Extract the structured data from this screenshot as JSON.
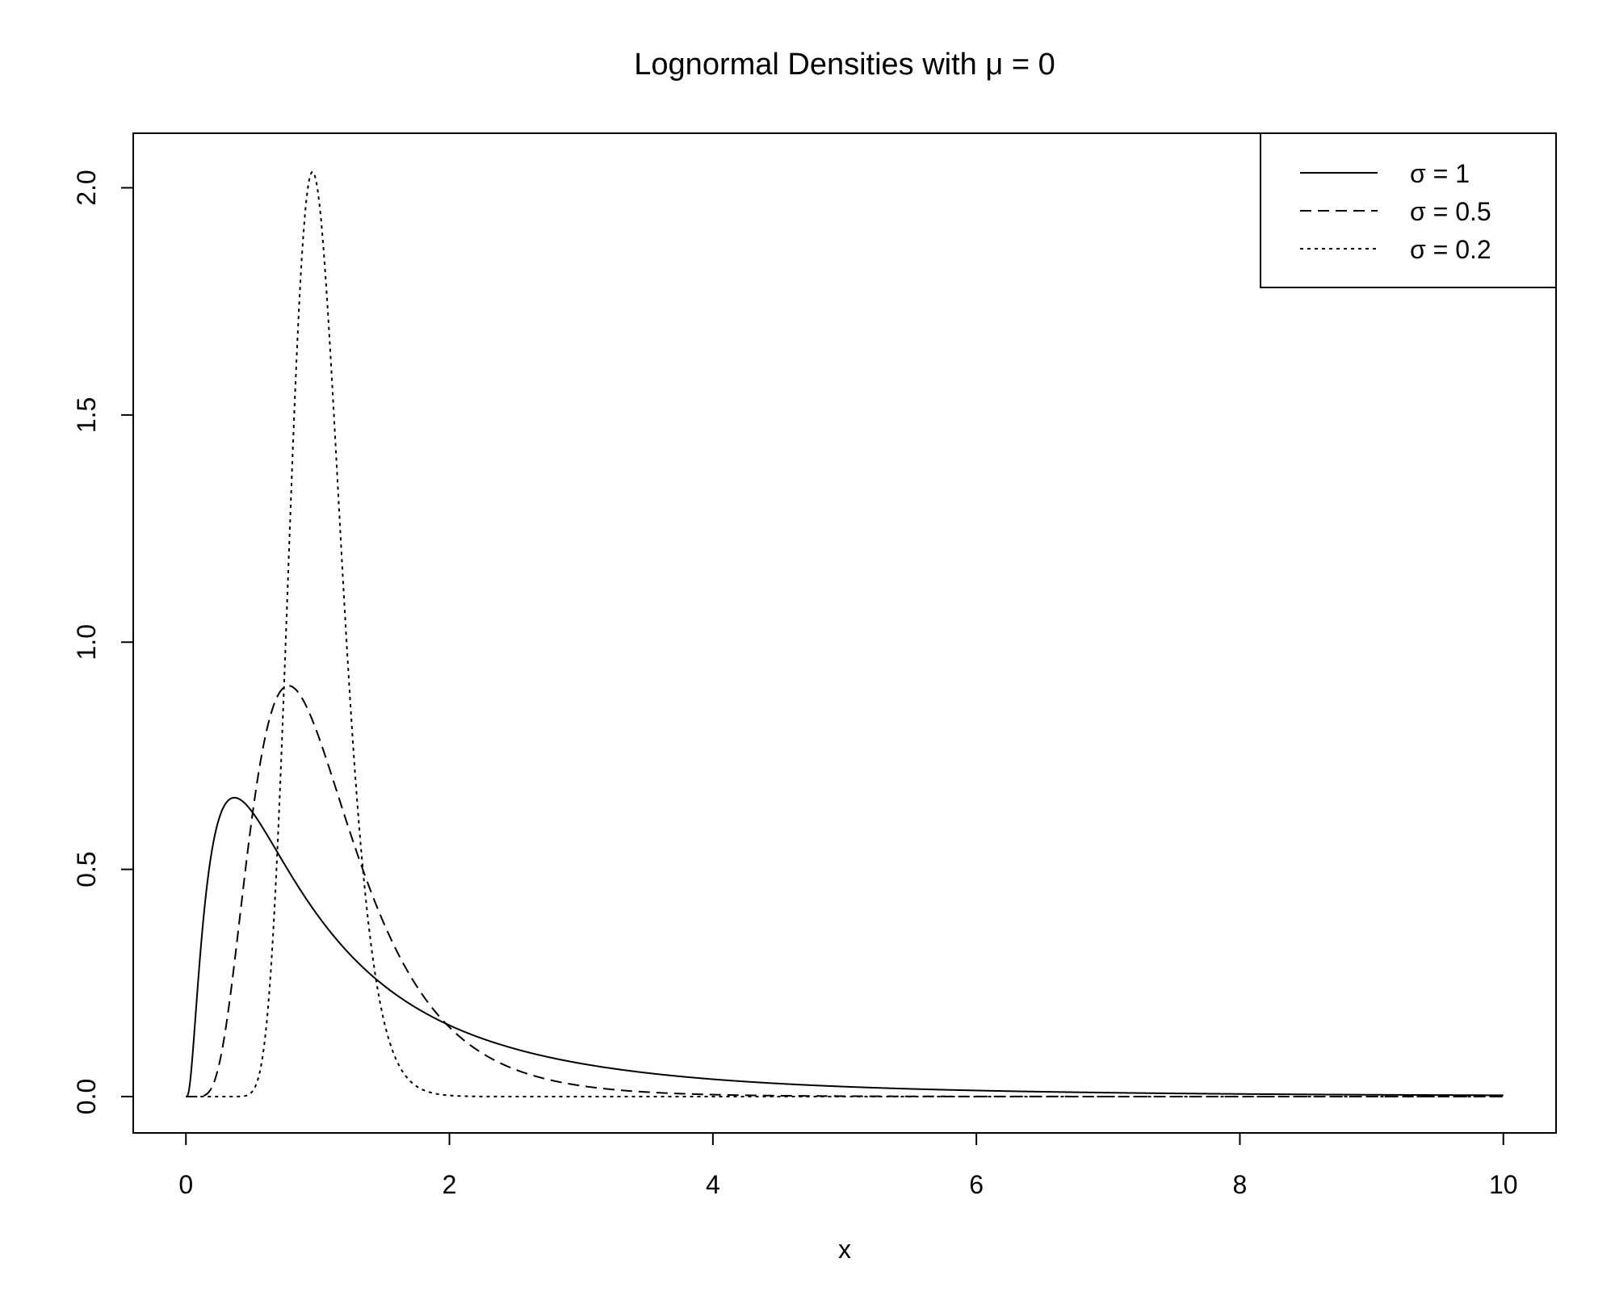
{
  "chart_data": {
    "type": "line",
    "title": "Lognormal Densities with μ = 0",
    "xlabel": "x",
    "ylabel": "",
    "xlim": [
      -0.4,
      10.4
    ],
    "ylim": [
      -0.08,
      2.12
    ],
    "xticks": [
      0,
      2,
      4,
      6,
      8,
      10
    ],
    "xtick_labels": [
      "0",
      "2",
      "4",
      "6",
      "8",
      "10"
    ],
    "yticks": [
      0.0,
      0.5,
      1.0,
      1.5,
      2.0
    ],
    "ytick_labels": [
      "0.0",
      "0.5",
      "1.0",
      "1.5",
      "2.0"
    ],
    "grid": false,
    "legend_position": "top-right",
    "x_range": [
      0,
      10
    ],
    "series": [
      {
        "name": "σ = 1",
        "mu": 0,
        "sigma": 1,
        "style": "solid"
      },
      {
        "name": "σ = 0.5",
        "mu": 0,
        "sigma": 0.5,
        "style": "dashed"
      },
      {
        "name": "σ = 0.2",
        "mu": 0,
        "sigma": 0.2,
        "style": "dotted"
      }
    ]
  }
}
